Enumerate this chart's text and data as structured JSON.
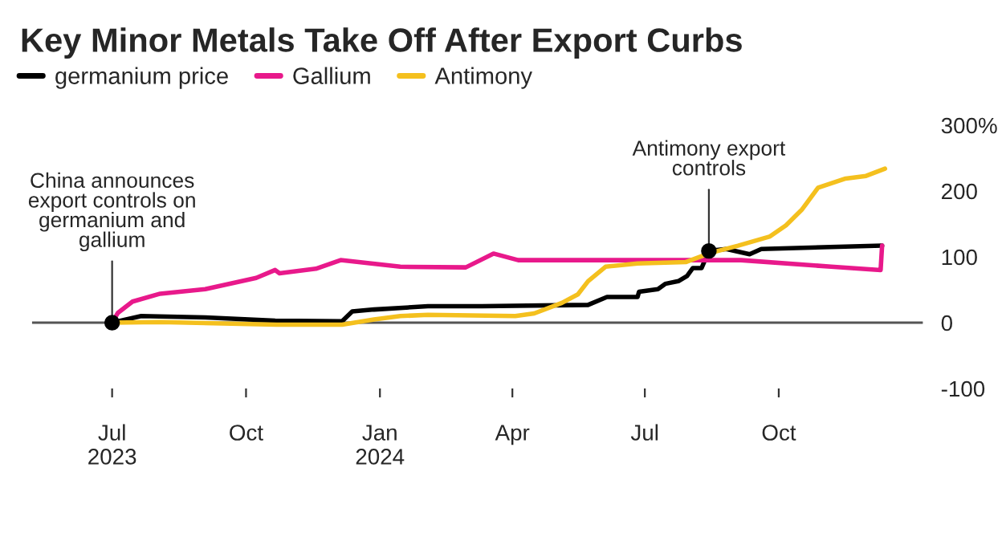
{
  "chart_data": {
    "type": "line",
    "title": "Key Minor Metals Take Off After Export Curbs",
    "series": [
      {
        "name": "germanium price",
        "color": "#000000",
        "x": [
          "2023-07-01",
          "2023-07-21",
          "2023-09-03",
          "2023-10-21",
          "2023-12-06",
          "2023-12-13",
          "2023-12-28",
          "2024-02-03",
          "2024-03-11",
          "2024-05-23",
          "2024-06-05",
          "2024-06-26",
          "2024-06-27",
          "2024-07-10",
          "2024-07-15",
          "2024-07-24",
          "2024-07-30",
          "2024-08-03",
          "2024-08-09",
          "2024-08-14",
          "2024-08-26",
          "2024-09-11",
          "2024-09-19",
          "2024-12-11"
        ],
        "values": [
          0,
          10,
          8,
          3,
          2,
          17,
          20,
          25,
          25,
          27,
          39,
          39,
          47,
          51,
          59,
          63,
          71,
          83,
          83,
          109,
          112,
          104,
          112,
          117
        ]
      },
      {
        "name": "Gallium",
        "color": "#e8198b",
        "x": [
          "2023-07-01",
          "2023-07-05",
          "2023-07-15",
          "2023-08-03",
          "2023-09-03",
          "2023-10-08",
          "2023-10-21",
          "2023-10-24",
          "2023-11-18",
          "2023-12-05",
          "2024-01-15",
          "2024-02-29",
          "2024-03-19",
          "2024-04-05",
          "2024-09-05",
          "2024-11-06",
          "2024-12-10",
          "2024-12-11"
        ],
        "values": [
          0,
          15,
          32,
          44,
          51,
          68,
          80,
          75,
          82,
          95,
          85,
          84,
          105,
          95,
          95,
          85,
          80,
          117
        ]
      },
      {
        "name": "Antimony",
        "color": "#f4c01e",
        "x": [
          "2023-07-01",
          "2023-08-03",
          "2023-10-22",
          "2023-12-06",
          "2023-12-28",
          "2024-01-15",
          "2024-02-03",
          "2024-04-03",
          "2024-04-16",
          "2024-05-05",
          "2024-05-16",
          "2024-05-23",
          "2024-06-04",
          "2024-06-26",
          "2024-07-29",
          "2024-08-15",
          "2024-09-03",
          "2024-09-25",
          "2024-10-06",
          "2024-10-17",
          "2024-10-28",
          "2024-11-16",
          "2024-11-30",
          "2024-12-13"
        ],
        "values": [
          0,
          1,
          -3,
          -3,
          5,
          10,
          12,
          10,
          14,
          30,
          43,
          63,
          85,
          90,
          92,
          106,
          117,
          131,
          148,
          172,
          205,
          219,
          223,
          234
        ]
      }
    ],
    "xlim": [
      "2023-05-07",
      "2025-01-08"
    ],
    "xticks": [
      {
        "value": "2023-07-01",
        "label": "Jul\n2023"
      },
      {
        "value": "2023-10-01",
        "label": "Oct"
      },
      {
        "value": "2024-01-01",
        "label": "Jan\n2024"
      },
      {
        "value": "2024-04-01",
        "label": "Apr"
      },
      {
        "value": "2024-07-01",
        "label": "Jul"
      },
      {
        "value": "2024-10-01",
        "label": "Oct"
      }
    ],
    "ylim": [
      -100,
      300
    ],
    "yticks": [
      -100,
      0,
      100,
      200,
      {
        "value": 300,
        "label": "300%"
      }
    ],
    "ref_lines": [
      {
        "axis": "y",
        "value": 0,
        "color": "#555555"
      }
    ],
    "annotations": [
      {
        "text": "China announces\nexport controls on\ngermanium and\ngallium",
        "x": "2023-07-01",
        "y": 0
      },
      {
        "text": "Antimony export\ncontrols",
        "x": "2024-08-14",
        "y": 109
      }
    ],
    "legend": "top left",
    "grid": false
  }
}
